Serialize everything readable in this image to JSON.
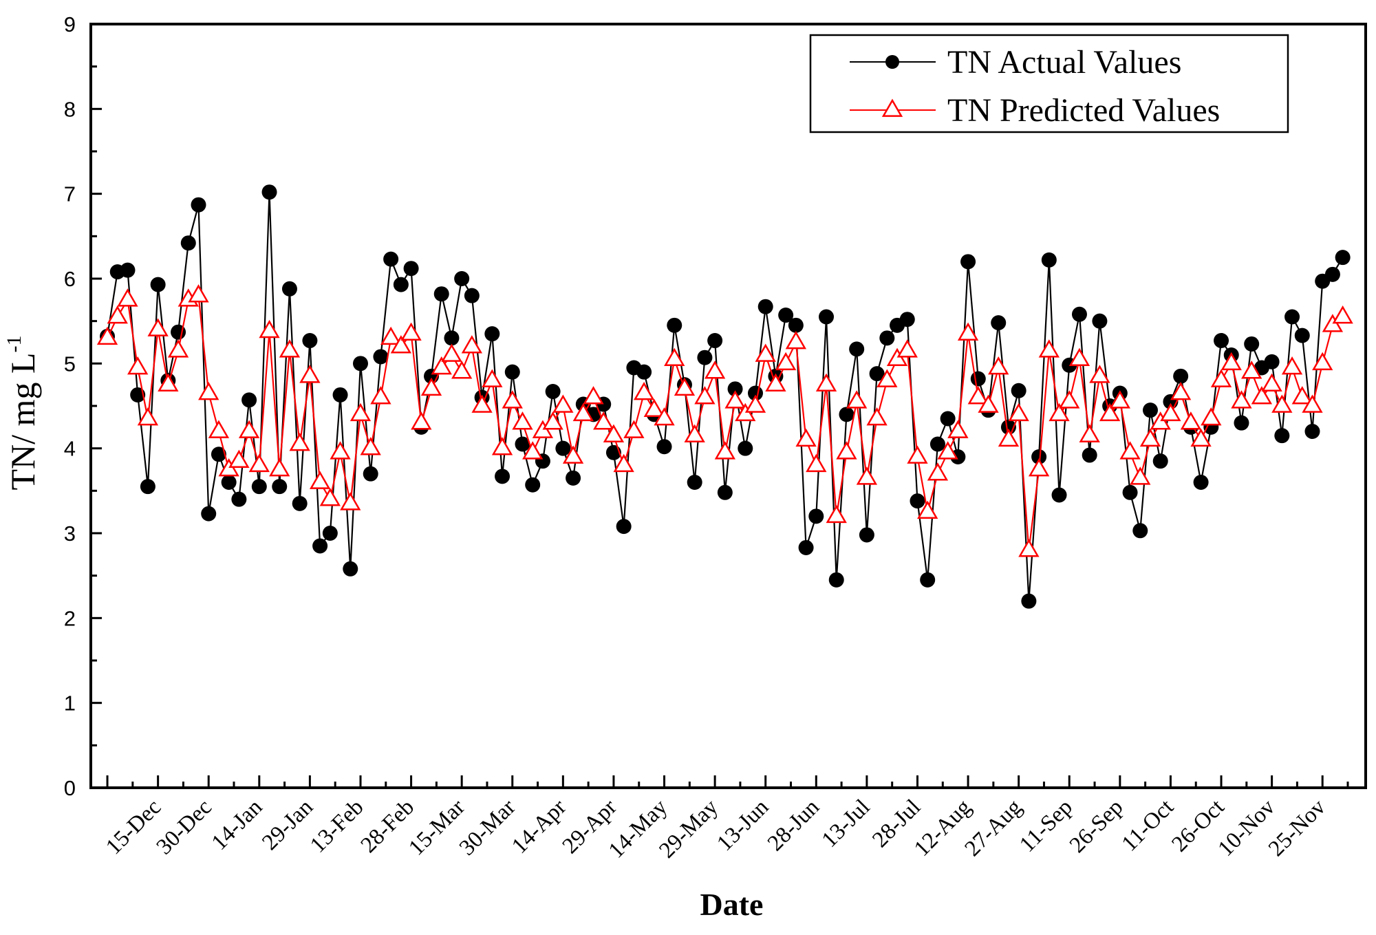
{
  "chart_data": {
    "type": "line",
    "title": "",
    "xlabel": "Date",
    "ylabel": "TN/ mg L",
    "ylabel_superscript": "-1",
    "ylim": [
      0,
      9
    ],
    "yticks": [
      "0",
      "1",
      "2",
      "3",
      "4",
      "5",
      "6",
      "7",
      "8",
      "9"
    ],
    "xticks": [
      "15-Dec",
      "30-Dec",
      "14-Jan",
      "29-Jan",
      "13-Feb",
      "28-Feb",
      "15-Mar",
      "30-Mar",
      "14-Apr",
      "29-Apr",
      "14-May",
      "29-May",
      "13-Jun",
      "28-Jun",
      "13-Jul",
      "28-Jul",
      "12-Aug",
      "27-Aug",
      "11-Sep",
      "26-Sep",
      "11-Oct",
      "26-Oct",
      "10-Nov",
      "25-Nov"
    ],
    "grid": false,
    "legend_position": "top-right",
    "x": [
      "30-Nov",
      "3-Dec",
      "6-Dec",
      "9-Dec",
      "12-Dec",
      "15-Dec",
      "18-Dec",
      "21-Dec",
      "24-Dec",
      "27-Dec",
      "30-Dec",
      "2-Jan",
      "5-Jan",
      "8-Jan",
      "11-Jan",
      "14-Jan",
      "17-Jan",
      "20-Jan",
      "23-Jan",
      "26-Jan",
      "29-Jan",
      "1-Feb",
      "4-Feb",
      "7-Feb",
      "10-Feb",
      "13-Feb",
      "16-Feb",
      "19-Feb",
      "22-Feb",
      "25-Feb",
      "28-Feb",
      "3-Mar",
      "6-Mar",
      "9-Mar",
      "12-Mar",
      "15-Mar",
      "18-Mar",
      "21-Mar",
      "24-Mar",
      "27-Mar",
      "30-Mar",
      "2-Apr",
      "5-Apr",
      "8-Apr",
      "11-Apr",
      "14-Apr",
      "17-Apr",
      "20-Apr",
      "23-Apr",
      "26-Apr",
      "29-Apr",
      "2-May",
      "5-May",
      "8-May",
      "11-May",
      "14-May",
      "17-May",
      "20-May",
      "23-May",
      "26-May",
      "29-May",
      "1-Jun",
      "4-Jun",
      "7-Jun",
      "10-Jun",
      "13-Jun",
      "16-Jun",
      "19-Jun",
      "22-Jun",
      "25-Jun",
      "28-Jun",
      "1-Jul",
      "4-Jul",
      "7-Jul",
      "10-Jul",
      "13-Jul",
      "16-Jul",
      "19-Jul",
      "22-Jul",
      "25-Jul",
      "28-Jul",
      "31-Jul",
      "3-Aug",
      "6-Aug",
      "9-Aug",
      "12-Aug",
      "15-Aug",
      "18-Aug",
      "21-Aug",
      "24-Aug",
      "27-Aug",
      "30-Aug",
      "2-Sep",
      "5-Sep",
      "8-Sep",
      "11-Sep",
      "14-Sep",
      "17-Sep",
      "20-Sep",
      "23-Sep",
      "26-Sep",
      "29-Sep",
      "2-Oct",
      "5-Oct",
      "8-Oct",
      "11-Oct",
      "14-Oct",
      "17-Oct",
      "20-Oct",
      "23-Oct",
      "26-Oct",
      "29-Oct",
      "1-Nov",
      "4-Nov",
      "7-Nov",
      "10-Nov",
      "13-Nov",
      "16-Nov",
      "19-Nov",
      "22-Nov",
      "25-Nov",
      "28-Nov",
      "1-Dec"
    ],
    "series": [
      {
        "name": "TN Actual Values",
        "color": "#000000",
        "marker": "filled-circle",
        "values": [
          5.32,
          6.08,
          6.1,
          4.63,
          3.55,
          5.93,
          4.8,
          5.37,
          6.42,
          6.87,
          3.23,
          3.93,
          3.6,
          3.4,
          4.57,
          3.55,
          7.02,
          3.55,
          5.88,
          3.35,
          5.27,
          2.85,
          3.0,
          4.63,
          2.58,
          5.0,
          3.7,
          5.08,
          6.23,
          5.93,
          6.12,
          4.25,
          4.85,
          5.82,
          5.3,
          6.0,
          5.8,
          4.6,
          5.35,
          3.67,
          4.9,
          4.05,
          3.57,
          3.85,
          4.67,
          4.0,
          3.65,
          4.52,
          4.4,
          4.52,
          3.95,
          3.08,
          4.95,
          4.9,
          4.4,
          4.02,
          5.45,
          4.75,
          3.6,
          5.07,
          5.27,
          3.48,
          4.7,
          4.0,
          4.65,
          5.67,
          4.85,
          5.57,
          5.45,
          2.83,
          3.2,
          5.55,
          2.45,
          4.4,
          5.17,
          2.98,
          4.88,
          5.3,
          5.45,
          5.52,
          3.38,
          2.45,
          4.05,
          4.35,
          3.9,
          6.2,
          4.82,
          4.45,
          5.48,
          4.25,
          4.68,
          2.2,
          3.9,
          6.22,
          3.45,
          4.98,
          5.58,
          3.92,
          5.5,
          4.5,
          4.65,
          3.48,
          3.03,
          4.45,
          3.85,
          4.55,
          4.85,
          4.25,
          3.6,
          4.25,
          5.27,
          5.1,
          4.3,
          5.23,
          4.95,
          5.02,
          4.15,
          5.55,
          5.33,
          4.2,
          5.97,
          6.05,
          6.25
        ]
      },
      {
        "name": "TN Predicted Values",
        "color": "#ff0000",
        "marker": "open-triangle",
        "values": [
          5.3,
          5.55,
          5.75,
          4.95,
          4.35,
          5.4,
          4.75,
          5.15,
          5.75,
          5.8,
          4.65,
          4.2,
          3.75,
          3.85,
          4.2,
          3.8,
          5.38,
          3.75,
          5.15,
          4.05,
          4.85,
          3.6,
          3.4,
          3.95,
          3.35,
          4.4,
          4.0,
          4.6,
          5.3,
          5.2,
          5.35,
          4.3,
          4.7,
          4.95,
          5.1,
          4.9,
          5.2,
          4.5,
          4.8,
          4.0,
          4.55,
          4.3,
          3.95,
          4.2,
          4.3,
          4.5,
          3.9,
          4.4,
          4.6,
          4.3,
          4.15,
          3.8,
          4.2,
          4.65,
          4.45,
          4.35,
          5.05,
          4.7,
          4.15,
          4.6,
          4.9,
          3.95,
          4.55,
          4.4,
          4.5,
          5.1,
          4.75,
          5.0,
          5.25,
          4.1,
          3.8,
          4.75,
          3.2,
          3.95,
          4.55,
          3.65,
          4.35,
          4.8,
          5.05,
          5.15,
          3.9,
          3.25,
          3.7,
          3.95,
          4.2,
          5.35,
          4.6,
          4.5,
          4.95,
          4.1,
          4.4,
          2.8,
          3.75,
          5.15,
          4.4,
          4.55,
          5.05,
          4.15,
          4.85,
          4.4,
          4.55,
          3.95,
          3.65,
          4.1,
          4.3,
          4.4,
          4.65,
          4.3,
          4.1,
          4.35,
          4.8,
          5.0,
          4.55,
          4.9,
          4.6,
          4.75,
          4.5,
          4.95,
          4.6,
          4.5,
          5.0,
          5.45,
          5.55
        ]
      }
    ]
  }
}
